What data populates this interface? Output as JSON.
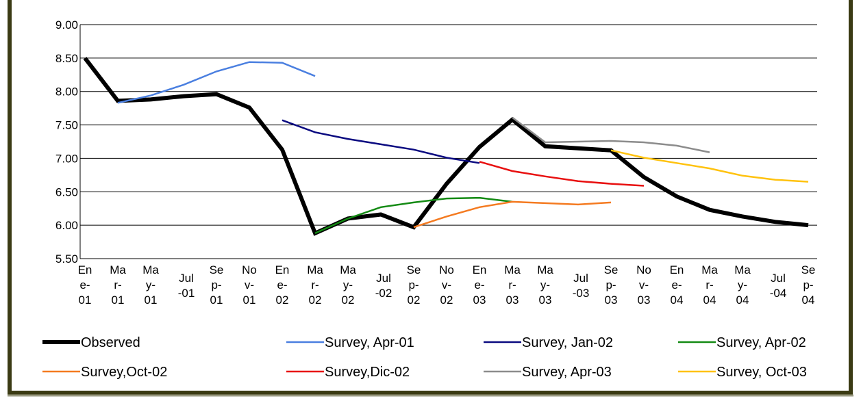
{
  "chart_data": {
    "type": "line",
    "categories": [
      "Ene-01",
      "Mar-01",
      "May-01",
      "Jul-01",
      "Sep-01",
      "Nov-01",
      "Ene-02",
      "Mar-02",
      "May-02",
      "Jul-02",
      "Sep-02",
      "Nov-02",
      "Ene-03",
      "Mar-03",
      "May-03",
      "Jul-03",
      "Sep-03",
      "Nov-03",
      "Ene-04",
      "Mar-04",
      "May-04",
      "Jul-04",
      "Sep-04"
    ],
    "series": [
      {
        "name": "Observed",
        "color": "#000000",
        "width": 6,
        "values": [
          8.5,
          7.86,
          7.88,
          7.93,
          7.96,
          7.76,
          7.13,
          5.88,
          6.1,
          6.16,
          5.97,
          6.62,
          7.17,
          7.58,
          7.18,
          7.15,
          7.12,
          6.72,
          6.43,
          6.23,
          6.13,
          6.05,
          6.0
        ]
      },
      {
        "name": "Survey, Apr-01",
        "color": "#4a7fe0",
        "width": 2.5,
        "values": [
          null,
          7.83,
          7.94,
          8.1,
          8.3,
          8.44,
          8.43,
          8.23,
          null,
          null,
          null,
          null,
          null,
          null,
          null,
          null,
          null,
          null,
          null,
          null,
          null,
          null,
          null
        ]
      },
      {
        "name": "Survey, Jan-02",
        "color": "#0a0a80",
        "width": 2.5,
        "values": [
          null,
          null,
          null,
          null,
          null,
          null,
          7.57,
          7.39,
          7.29,
          7.21,
          7.13,
          7.01,
          6.93,
          null,
          null,
          null,
          null,
          null,
          null,
          null,
          null,
          null,
          null
        ]
      },
      {
        "name": "Survey, Apr-02",
        "color": "#138a13",
        "width": 2.5,
        "values": [
          null,
          null,
          null,
          null,
          null,
          null,
          null,
          5.88,
          6.1,
          6.27,
          6.34,
          6.4,
          6.41,
          6.35,
          null,
          null,
          null,
          null,
          null,
          null,
          null,
          null,
          null
        ]
      },
      {
        "name": "Survey,Oct-02",
        "color": "#f47a20",
        "width": 2.5,
        "values": [
          null,
          null,
          null,
          null,
          null,
          null,
          null,
          null,
          null,
          null,
          5.97,
          6.13,
          6.27,
          6.35,
          6.33,
          6.31,
          6.34,
          null,
          null,
          null,
          null,
          null,
          null
        ]
      },
      {
        "name": "Survey,Dic-02",
        "color": "#e81010",
        "width": 2.5,
        "values": [
          null,
          null,
          null,
          null,
          null,
          null,
          null,
          null,
          null,
          null,
          null,
          null,
          6.95,
          6.81,
          6.73,
          6.66,
          6.62,
          6.59,
          null,
          null,
          null,
          null,
          null
        ]
      },
      {
        "name": "Survey, Apr-03",
        "color": "#8c8c8c",
        "width": 2.5,
        "values": [
          null,
          null,
          null,
          null,
          null,
          null,
          null,
          null,
          null,
          null,
          null,
          null,
          null,
          7.61,
          7.24,
          7.25,
          7.26,
          7.24,
          7.19,
          7.09,
          null,
          null,
          null
        ]
      },
      {
        "name": "Survey, Oct-03",
        "color": "#ffc20e",
        "width": 2.5,
        "values": [
          null,
          null,
          null,
          null,
          null,
          null,
          null,
          null,
          null,
          null,
          null,
          null,
          null,
          null,
          null,
          null,
          7.12,
          7.01,
          6.93,
          6.85,
          6.74,
          6.68,
          6.65
        ]
      }
    ],
    "ylim": [
      5.5,
      9.0
    ],
    "yticks": [
      {
        "value": 5.5,
        "label": "5.50"
      },
      {
        "value": 6.0,
        "label": "6.00"
      },
      {
        "value": 6.5,
        "label": "6.50"
      },
      {
        "value": 7.0,
        "label": "7.00"
      },
      {
        "value": 7.5,
        "label": "7.50"
      },
      {
        "value": 8.0,
        "label": "8.00"
      },
      {
        "value": 8.5,
        "label": "8.50"
      },
      {
        "value": 9.0,
        "label": "9.00"
      }
    ],
    "grid": true,
    "legend": "bottom"
  }
}
